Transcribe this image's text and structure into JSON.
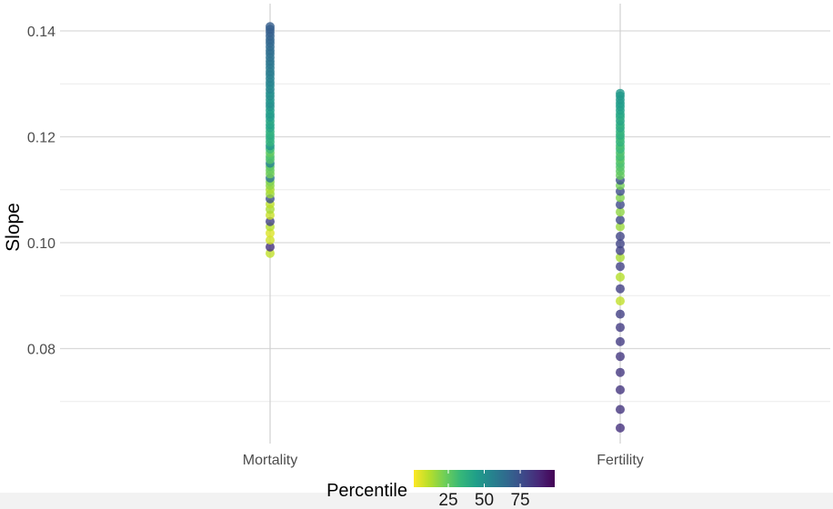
{
  "chart_data": {
    "type": "scatter",
    "title": "",
    "xlabel": "",
    "ylabel": "Slope",
    "categories": [
      "Mortality",
      "Fertility"
    ],
    "ylim": [
      0.062,
      0.143
    ],
    "yticks": [
      0.08,
      0.1,
      0.12,
      0.14
    ],
    "ytick_labels": [
      "0.08",
      "0.10",
      "0.12",
      "0.14"
    ],
    "grid": true,
    "legend": {
      "title": "Percentile",
      "position": "bottom",
      "type": "colorbar",
      "range": [
        1,
        99
      ],
      "ticks": [
        25,
        50,
        75
      ],
      "tick_labels": [
        "25",
        "50",
        "75"
      ],
      "palette": [
        "#fde725",
        "#b5de2b",
        "#6ece58",
        "#35b779",
        "#1f9e89",
        "#26828e",
        "#31688e",
        "#3e4989",
        "#482878",
        "#440154"
      ]
    },
    "series": [
      {
        "category": "Mortality",
        "points": [
          {
            "y": 0.098,
            "p": 10
          },
          {
            "y": 0.0992,
            "p": 85
          },
          {
            "y": 0.1005,
            "p": 8
          },
          {
            "y": 0.1018,
            "p": 6
          },
          {
            "y": 0.103,
            "p": 12
          },
          {
            "y": 0.104,
            "p": 80
          },
          {
            "y": 0.1052,
            "p": 9
          },
          {
            "y": 0.1063,
            "p": 14
          },
          {
            "y": 0.1073,
            "p": 11
          },
          {
            "y": 0.1083,
            "p": 75
          },
          {
            "y": 0.1092,
            "p": 16
          },
          {
            "y": 0.11,
            "p": 13
          },
          {
            "y": 0.1108,
            "p": 18
          },
          {
            "y": 0.1115,
            "p": 20
          },
          {
            "y": 0.1122,
            "p": 60
          },
          {
            "y": 0.113,
            "p": 22
          },
          {
            "y": 0.1137,
            "p": 24
          },
          {
            "y": 0.1144,
            "p": 26
          },
          {
            "y": 0.115,
            "p": 55
          },
          {
            "y": 0.1157,
            "p": 28
          },
          {
            "y": 0.1163,
            "p": 30
          },
          {
            "y": 0.117,
            "p": 25
          },
          {
            "y": 0.1177,
            "p": 33
          },
          {
            "y": 0.1183,
            "p": 48
          },
          {
            "y": 0.119,
            "p": 35
          },
          {
            "y": 0.1197,
            "p": 37
          },
          {
            "y": 0.1203,
            "p": 39
          },
          {
            "y": 0.121,
            "p": 36
          },
          {
            "y": 0.1217,
            "p": 41
          },
          {
            "y": 0.1223,
            "p": 43
          },
          {
            "y": 0.123,
            "p": 40
          },
          {
            "y": 0.1237,
            "p": 45
          },
          {
            "y": 0.1243,
            "p": 47
          },
          {
            "y": 0.125,
            "p": 44
          },
          {
            "y": 0.1257,
            "p": 49
          },
          {
            "y": 0.1263,
            "p": 51
          },
          {
            "y": 0.127,
            "p": 48
          },
          {
            "y": 0.1277,
            "p": 52
          },
          {
            "y": 0.1283,
            "p": 50
          },
          {
            "y": 0.129,
            "p": 54
          },
          {
            "y": 0.1297,
            "p": 53
          },
          {
            "y": 0.1303,
            "p": 55
          },
          {
            "y": 0.131,
            "p": 56
          },
          {
            "y": 0.1317,
            "p": 57
          },
          {
            "y": 0.1323,
            "p": 58
          },
          {
            "y": 0.133,
            "p": 59
          },
          {
            "y": 0.1337,
            "p": 60
          },
          {
            "y": 0.1343,
            "p": 61
          },
          {
            "y": 0.135,
            "p": 62
          },
          {
            "y": 0.1357,
            "p": 63
          },
          {
            "y": 0.1363,
            "p": 64
          },
          {
            "y": 0.137,
            "p": 65
          },
          {
            "y": 0.1377,
            "p": 66
          },
          {
            "y": 0.1383,
            "p": 67
          },
          {
            "y": 0.139,
            "p": 68
          },
          {
            "y": 0.1397,
            "p": 69
          },
          {
            "y": 0.1403,
            "p": 70
          },
          {
            "y": 0.1408,
            "p": 70
          }
        ]
      },
      {
        "category": "Fertility",
        "points": [
          {
            "y": 0.065,
            "p": 85
          },
          {
            "y": 0.0685,
            "p": 84
          },
          {
            "y": 0.0722,
            "p": 84
          },
          {
            "y": 0.0755,
            "p": 83
          },
          {
            "y": 0.0785,
            "p": 83
          },
          {
            "y": 0.0813,
            "p": 82
          },
          {
            "y": 0.084,
            "p": 82
          },
          {
            "y": 0.0865,
            "p": 81
          },
          {
            "y": 0.089,
            "p": 10
          },
          {
            "y": 0.0913,
            "p": 81
          },
          {
            "y": 0.0935,
            "p": 12
          },
          {
            "y": 0.0955,
            "p": 80
          },
          {
            "y": 0.0972,
            "p": 14
          },
          {
            "y": 0.0985,
            "p": 80
          },
          {
            "y": 0.0998,
            "p": 79
          },
          {
            "y": 0.1012,
            "p": 79
          },
          {
            "y": 0.103,
            "p": 16
          },
          {
            "y": 0.1043,
            "p": 78
          },
          {
            "y": 0.1058,
            "p": 18
          },
          {
            "y": 0.1072,
            "p": 77
          },
          {
            "y": 0.1085,
            "p": 20
          },
          {
            "y": 0.1097,
            "p": 76
          },
          {
            "y": 0.1108,
            "p": 22
          },
          {
            "y": 0.1118,
            "p": 75
          },
          {
            "y": 0.1127,
            "p": 24
          },
          {
            "y": 0.1135,
            "p": 26
          },
          {
            "y": 0.1143,
            "p": 28
          },
          {
            "y": 0.115,
            "p": 30
          },
          {
            "y": 0.1157,
            "p": 27
          },
          {
            "y": 0.1163,
            "p": 32
          },
          {
            "y": 0.117,
            "p": 29
          },
          {
            "y": 0.1177,
            "p": 34
          },
          {
            "y": 0.1183,
            "p": 31
          },
          {
            "y": 0.119,
            "p": 36
          },
          {
            "y": 0.1197,
            "p": 33
          },
          {
            "y": 0.1203,
            "p": 38
          },
          {
            "y": 0.121,
            "p": 35
          },
          {
            "y": 0.1217,
            "p": 40
          },
          {
            "y": 0.1223,
            "p": 37
          },
          {
            "y": 0.123,
            "p": 42
          },
          {
            "y": 0.1237,
            "p": 39
          },
          {
            "y": 0.1243,
            "p": 41
          },
          {
            "y": 0.125,
            "p": 43
          },
          {
            "y": 0.1257,
            "p": 44
          },
          {
            "y": 0.1263,
            "p": 45
          },
          {
            "y": 0.127,
            "p": 46
          },
          {
            "y": 0.1277,
            "p": 47
          },
          {
            "y": 0.1282,
            "p": 47
          }
        ]
      }
    ]
  }
}
